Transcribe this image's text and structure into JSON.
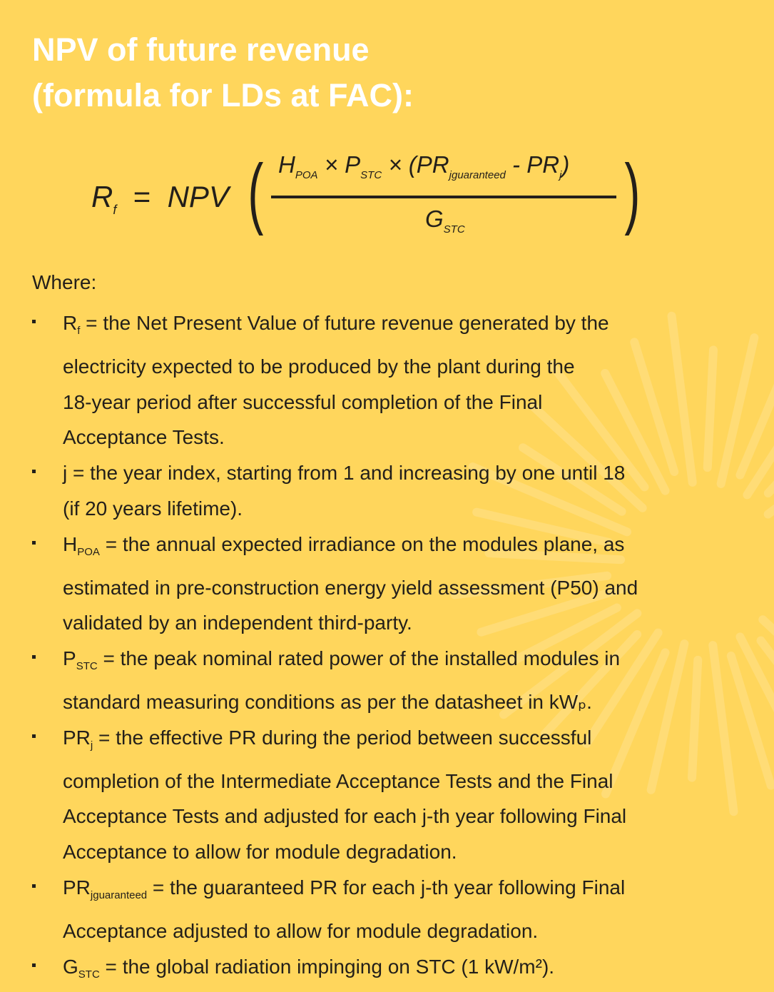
{
  "colors": {
    "background": "#FFD65C",
    "title": "#FFFFFF",
    "text": "#231F1A",
    "sunburst": "rgba(255,255,255,0.16)"
  },
  "title": {
    "line1": "NPV of future revenue",
    "line2": "(formula for LDs at FAC):"
  },
  "formula": {
    "lhs": "R",
    "lhs_sub": "f",
    "equals": "=",
    "npv": "NPV",
    "open_paren": "(",
    "close_paren": ")",
    "num": {
      "h": "H",
      "h_sub": "POA",
      "times1": "×",
      "p": "P",
      "p_sub": "STC",
      "times2": "×",
      "open": "(",
      "pr1": "PR",
      "pr1_sub": "jguaranteed",
      "minus": "-",
      "pr2": "PR",
      "pr2_sub": "j",
      "close": ")"
    },
    "den": {
      "g": "G",
      "g_sub": "STC"
    }
  },
  "where_label": "Where:",
  "bullets": [
    {
      "sym": "R",
      "sub": "f",
      "lines": [
        " = the Net Present Value of future revenue generated by the",
        "electricity expected to be produced by the plant during the",
        "18-year period after successful completion of the Final",
        "Acceptance Tests."
      ]
    },
    {
      "sym": "j",
      "sub": "",
      "lines": [
        " = the year index, starting from 1 and increasing by one until 18",
        "(if 20 years lifetime)."
      ]
    },
    {
      "sym": "H",
      "sub": "POA",
      "lines": [
        " = the annual expected irradiance on the modules plane, as",
        "estimated in pre-construction energy yield assessment (P50) and",
        "validated by an independent third-party."
      ]
    },
    {
      "sym": "P",
      "sub": "STC",
      "lines": [
        " = the peak nominal rated power of the installed modules in",
        "standard measuring conditions as per the datasheet in kWₚ."
      ]
    },
    {
      "sym": "PR",
      "sub": "j",
      "lines": [
        " = the effective PR during the period between successful",
        "completion of the Intermediate Acceptance Tests and the Final",
        "Acceptance Tests and adjusted for each j-th year following Final",
        "Acceptance to allow for module degradation."
      ]
    },
    {
      "sym": "PR",
      "sub": "jguaranteed",
      "lines": [
        " = the guaranteed PR for each j-th year following Final",
        "Acceptance adjusted to allow for module degradation."
      ]
    },
    {
      "sym": "G",
      "sub": "STC",
      "lines": [
        " = the global radiation impinging on STC (1 kW/m²)."
      ]
    }
  ]
}
